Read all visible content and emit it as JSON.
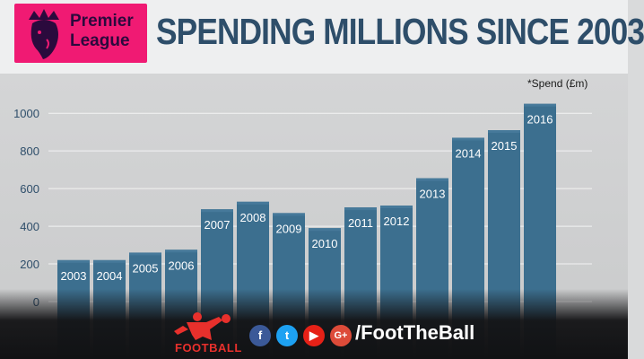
{
  "header": {
    "logo_line1": "Premier",
    "logo_line2": "League",
    "title": "SPENDING MILLIONS SINCE 2003"
  },
  "chart_data": {
    "type": "bar",
    "categories": [
      "2003",
      "2004",
      "2005",
      "2006",
      "2007",
      "2008",
      "2009",
      "2010",
      "2011",
      "2012",
      "2013",
      "2014",
      "2015",
      "2016"
    ],
    "values": [
      220,
      220,
      260,
      275,
      490,
      530,
      470,
      390,
      500,
      510,
      655,
      870,
      910,
      1050
    ],
    "unit_note": "*Spend (£m)",
    "yticks": [
      "0",
      "200",
      "400",
      "600",
      "800",
      "1000"
    ],
    "ylim": [
      0,
      1100
    ],
    "grid": true
  },
  "footer": {
    "brand": "FOOTBALL",
    "handle": "/FootTheBall",
    "icons": [
      "facebook-icon",
      "twitter-icon",
      "youtube-icon",
      "google-plus-icon"
    ]
  },
  "colors": {
    "bar": "#3c6f8f",
    "bar_top": "#46799a",
    "title": "#2e4e6a",
    "logo_bg": "#f01a73"
  }
}
